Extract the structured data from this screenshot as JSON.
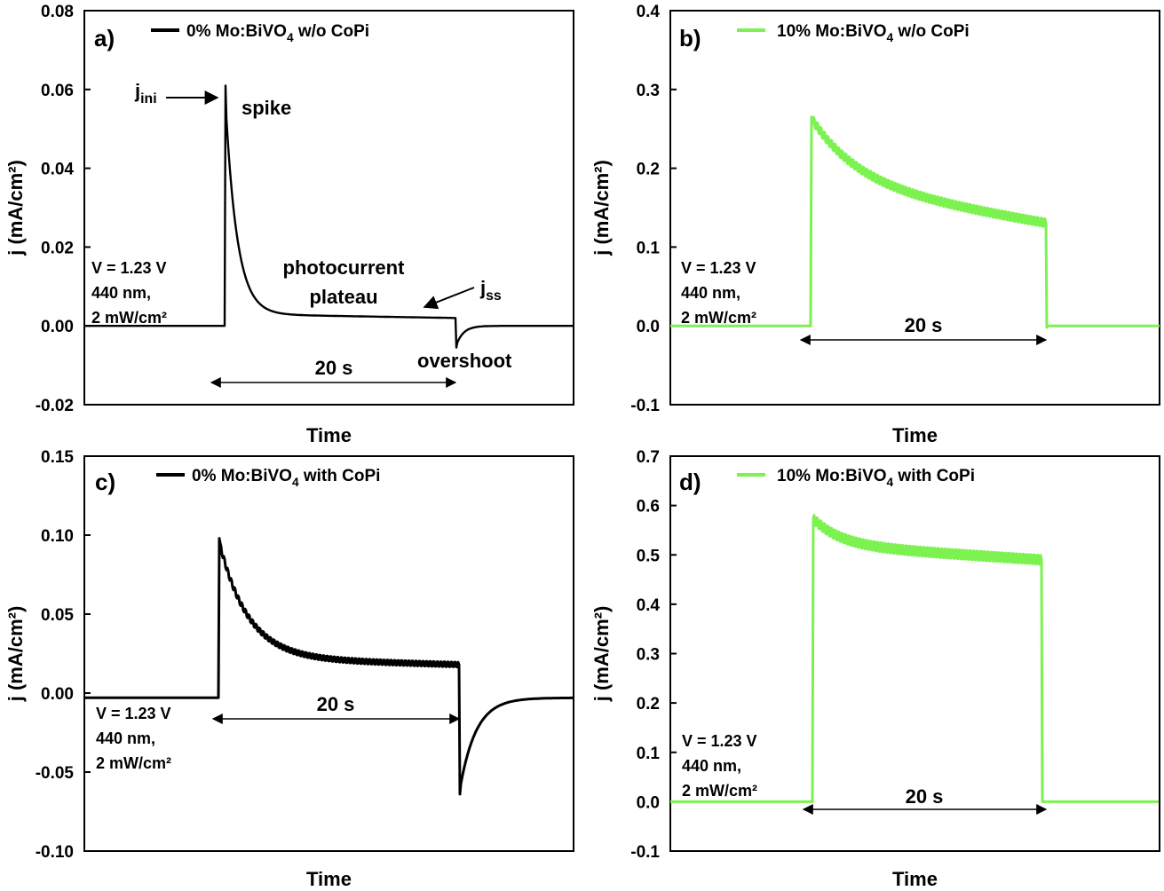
{
  "chart_data": [
    {
      "panel": "a)",
      "type": "line",
      "xlabel": "Time",
      "ylabel": "j (mA/cm²)",
      "ylim": [
        -0.02,
        0.08
      ],
      "yticks": [
        "-0.02",
        "0.00",
        "0.02",
        "0.04",
        "0.06",
        "0.08"
      ],
      "ytick_values": [
        -0.02,
        0.0,
        0.02,
        0.04,
        0.06,
        0.08
      ],
      "color": "#000000",
      "legend": {
        "name": "0% Mo:BiVO",
        "sub": "4",
        "suffix": " w/o CoPi"
      },
      "conditions": [
        "V = 1.23 V",
        "440 nm,",
        "2 mW/cm²"
      ],
      "duration_label": "20 s",
      "annotations": {
        "jini": "j",
        "jini_sub": "ini",
        "jss": "j",
        "jss_sub": "ss",
        "spike": "spike",
        "plateau_line1": "photocurrent",
        "plateau_line2": "plateau",
        "overshoot": "overshoot"
      },
      "response": {
        "dark": 0.0,
        "spike": 0.061,
        "plateau_start": 0.003,
        "plateau_end": 0.002,
        "tau_decay": 0.05,
        "noise": 0.0,
        "undershoot": -0.0055,
        "tau_recover": 0.06
      }
    },
    {
      "panel": "b)",
      "type": "line",
      "xlabel": "Time",
      "ylabel": "j (mA/cm²)",
      "ylim": [
        -0.1,
        0.4
      ],
      "yticks": [
        "-0.1",
        "0.0",
        "0.1",
        "0.2",
        "0.3",
        "0.4"
      ],
      "ytick_values": [
        -0.1,
        0.0,
        0.1,
        0.2,
        0.3,
        0.4
      ],
      "color": "#7CF250",
      "legend": {
        "name": "10% Mo:BiVO",
        "sub": "4",
        "suffix": " w/o CoPi"
      },
      "conditions": [
        "V = 1.23 V",
        "440 nm,",
        "2 mW/cm²"
      ],
      "duration_label": "20 s",
      "response": {
        "dark": 0.0,
        "spike": 0.265,
        "plateau_start": 0.18,
        "plateau_end": 0.13,
        "tau_decay": 0.2,
        "noise": 0.01,
        "undershoot": -0.002,
        "tau_recover": 0.01
      }
    },
    {
      "panel": "c)",
      "type": "line",
      "xlabel": "Time",
      "ylabel": "j (mA/cm²)",
      "ylim": [
        -0.1,
        0.15
      ],
      "yticks": [
        "-0.10",
        "-0.05",
        "0.00",
        "0.05",
        "0.10",
        "0.15"
      ],
      "ytick_values": [
        -0.1,
        -0.05,
        0.0,
        0.05,
        0.1,
        0.15
      ],
      "color": "#000000",
      "legend": {
        "name": "0% Mo:BiVO",
        "sub": "4",
        "suffix": " with CoPi"
      },
      "conditions": [
        "V = 1.23 V",
        "440 nm,",
        "2 mW/cm²"
      ],
      "duration_label": "20 s",
      "response": {
        "dark": -0.003,
        "spike": 0.098,
        "plateau_start": 0.022,
        "plateau_end": 0.018,
        "tau_decay": 0.12,
        "noise": 0.003,
        "undershoot": -0.064,
        "tau_recover": 0.14
      }
    },
    {
      "panel": "d)",
      "type": "line",
      "xlabel": "Time",
      "ylabel": "j (mA/cm²)",
      "ylim": [
        -0.1,
        0.7
      ],
      "yticks": [
        "-0.1",
        "0.0",
        "0.1",
        "0.2",
        "0.3",
        "0.4",
        "0.5",
        "0.6",
        "0.7"
      ],
      "ytick_values": [
        -0.1,
        0.0,
        0.1,
        0.2,
        0.3,
        0.4,
        0.5,
        0.6,
        0.7
      ],
      "color": "#7CF250",
      "legend": {
        "name": "10% Mo:BiVO",
        "sub": "4",
        "suffix": " with CoPi"
      },
      "conditions": [
        "V = 1.23 V",
        "440 nm,",
        "2 mW/cm²"
      ],
      "duration_label": "20 s",
      "response": {
        "dark": 0.0,
        "spike": 0.575,
        "plateau_start": 0.52,
        "plateau_end": 0.49,
        "tau_decay": 0.12,
        "noise": 0.018,
        "undershoot": 0.0,
        "tau_recover": 0.01
      }
    }
  ]
}
